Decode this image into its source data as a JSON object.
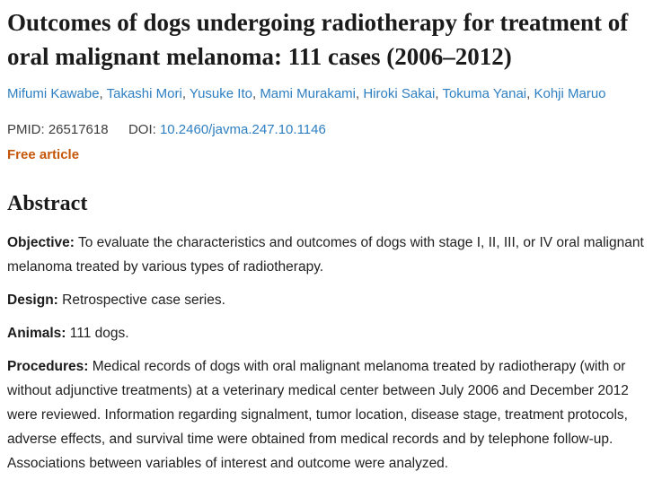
{
  "article": {
    "title": "Outcomes of dogs undergoing radiotherapy for treatment of oral malignant melanoma: 111 cases (2006–2012)",
    "authors": [
      "Mifumi Kawabe",
      "Takashi Mori",
      "Yusuke Ito",
      "Mami Murakami",
      "Hiroki Sakai",
      "Tokuma Yanai",
      "Kohji Maruo"
    ],
    "author_separator": ", ",
    "pmid_label": "PMID:",
    "pmid_value": "26517618",
    "doi_label": "DOI:",
    "doi_value": "10.2460/javma.247.10.1146",
    "free_article_label": "Free article",
    "abstract_heading": "Abstract",
    "abstract_sections": [
      {
        "label": "Objective:",
        "text": "To evaluate the characteristics and outcomes of dogs with stage I, II, III, or IV oral malignant melanoma treated by various types of radiotherapy."
      },
      {
        "label": "Design:",
        "text": "Retrospective case series."
      },
      {
        "label": "Animals:",
        "text": "111 dogs."
      },
      {
        "label": "Procedures:",
        "text": "Medical records of dogs with oral malignant melanoma treated by radiotherapy (with or without adjunctive treatments) at a veterinary medical center between July 2006 and December 2012 were reviewed. Information regarding signalment, tumor location, disease stage, treatment protocols, adverse effects, and survival time were obtained from medical records and by telephone follow-up. Associations between variables of interest and outcome were analyzed."
      }
    ]
  },
  "colors": {
    "link_blue": "#2e7fc1",
    "free_article_orange": "#c5570a",
    "heading_dark": "#1b1b1b",
    "body_text": "#212121"
  }
}
